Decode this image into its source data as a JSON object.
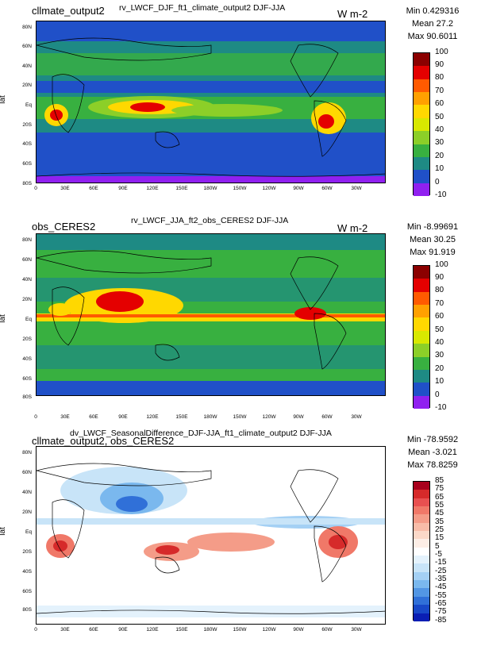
{
  "panels": [
    {
      "left_title": "cllmate_output2",
      "center_title": "rv_LWCF_DJF_ft1_climate_output2  DJF-JJA",
      "units": "W m-2",
      "min_label": "Min 0.429316",
      "mean_label": "Mean 27.2",
      "max_label": "Max 90.6011",
      "colorbar_ticks": [
        "100",
        "90",
        "80",
        "70",
        "60",
        "50",
        "40",
        "30",
        "20",
        "10",
        "0",
        "-10"
      ],
      "colorbar_colors": [
        "#8b0000",
        "#e40000",
        "#ff5a00",
        "#ffa000",
        "#ffd800",
        "#d8e800",
        "#8ccf28",
        "#38b040",
        "#1e8a84",
        "#2050c8",
        "#9020f0"
      ]
    },
    {
      "left_title": "obs_CERES2",
      "center_title": "rv_LWCF_JJA_ft2_obs_CERES2  DJF-JJA",
      "units": "W m-2",
      "min_label": "Min -8.99691",
      "mean_label": "Mean 30.25",
      "max_label": "Max 91.919",
      "colorbar_ticks": [
        "100",
        "90",
        "80",
        "70",
        "60",
        "50",
        "40",
        "30",
        "20",
        "10",
        "0",
        "-10"
      ],
      "colorbar_colors": [
        "#8b0000",
        "#e40000",
        "#ff5a00",
        "#ffa000",
        "#ffd800",
        "#d8e800",
        "#8ccf28",
        "#38b040",
        "#1e8a84",
        "#2050c8",
        "#9020f0"
      ]
    },
    {
      "left_title": "cllmate_output2, obs_CERES2",
      "center_title": "dv_LWCF_SeasonalDifference_DJF-JJA_ft1_climate_output2  DJF-JJA",
      "units": "",
      "min_label": "Min -78.9592",
      "mean_label": "Mean -3.021",
      "max_label": "Max 78.8259",
      "colorbar_ticks": [
        "85",
        "75",
        "65",
        "55",
        "45",
        "35",
        "25",
        "15",
        "5",
        "-5",
        "-15",
        "-25",
        "-35",
        "-45",
        "-55",
        "-65",
        "-75",
        "-85"
      ],
      "colorbar_colors": [
        "#a8001c",
        "#d62a2a",
        "#e85050",
        "#f07868",
        "#f49c88",
        "#f8bca8",
        "#fbd8c8",
        "#fdeee6",
        "#ffffff",
        "#e4f2fc",
        "#c8e4f8",
        "#a4d0f4",
        "#7ab8ee",
        "#5296e4",
        "#3070d8",
        "#1848c8",
        "#0a1eb4"
      ]
    }
  ],
  "lat_ticks": [
    "80N",
    "60N",
    "40N",
    "20N",
    "Eq",
    "20S",
    "40S",
    "60S",
    "80S"
  ],
  "lon_ticks": [
    "0",
    "30E",
    "60E",
    "90E",
    "120E",
    "150E",
    "180W",
    "150W",
    "120W",
    "90W",
    "60W",
    "30W"
  ],
  "y_axis_label": "lat"
}
